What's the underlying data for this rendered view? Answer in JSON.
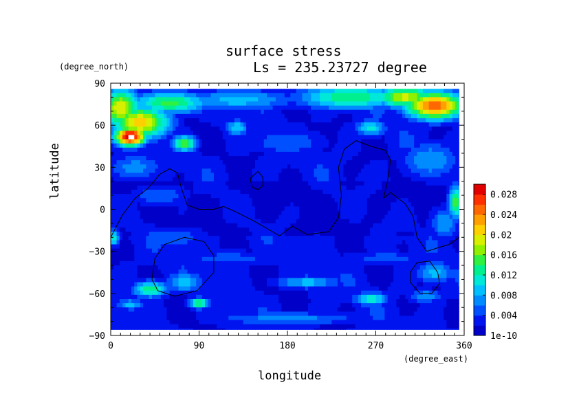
{
  "chart_data": {
    "type": "heatmap",
    "title": "surface stress",
    "subtitle": "Ls = 235.23727 degree",
    "xlabel": "longitude",
    "ylabel": "latitude",
    "x_unit": "(degree_east)",
    "y_unit": "(degree_north)",
    "xlim": [
      0,
      360
    ],
    "ylim": [
      -90,
      90
    ],
    "x_ticks": [
      "0",
      "90",
      "180",
      "270",
      "360"
    ],
    "x_tick_values": [
      0,
      90,
      180,
      270,
      360
    ],
    "y_ticks": [
      "90",
      "60",
      "30",
      "0",
      "−30",
      "−60",
      "−90"
    ],
    "y_tick_values": [
      90,
      60,
      30,
      0,
      -30,
      -60,
      -90
    ],
    "colorbar": {
      "min": 0,
      "max": 0.03,
      "tick_labels": [
        "0.028",
        "0.024",
        "0.02",
        "0.016",
        "0.012",
        "0.008",
        "0.004",
        "1e-10"
      ],
      "tick_values": [
        0.028,
        0.024,
        0.02,
        0.016,
        0.012,
        0.008,
        0.004,
        0
      ],
      "colors": [
        "#0000c8",
        "#0014f0",
        "#0050ff",
        "#008cff",
        "#00c0ff",
        "#00e8d8",
        "#00f090",
        "#30f040",
        "#90f000",
        "#d8f000",
        "#ffd000",
        "#ffa000",
        "#ff6800",
        "#ff3000",
        "#e00000"
      ]
    },
    "grid": false,
    "data_extent": {
      "lon": [
        0,
        355
      ],
      "lat": [
        -86,
        86
      ]
    },
    "field_hotspots": [
      {
        "lon": 20,
        "lat": 52,
        "value": 0.031,
        "rlon": 16,
        "rlat": 7
      },
      {
        "lon": 30,
        "lat": 62,
        "value": 0.021,
        "rlon": 30,
        "rlat": 12
      },
      {
        "lon": 10,
        "lat": 72,
        "value": 0.02,
        "rlon": 20,
        "rlat": 14
      },
      {
        "lon": 60,
        "lat": 76,
        "value": 0.015,
        "rlon": 40,
        "rlat": 8
      },
      {
        "lon": 130,
        "lat": 78,
        "value": 0.009,
        "rlon": 60,
        "rlat": 8
      },
      {
        "lon": 245,
        "lat": 80,
        "value": 0.014,
        "rlon": 55,
        "rlat": 9
      },
      {
        "lon": 330,
        "lat": 74,
        "value": 0.026,
        "rlon": 30,
        "rlat": 10
      },
      {
        "lon": 300,
        "lat": 80,
        "value": 0.019,
        "rlon": 30,
        "rlat": 8
      },
      {
        "lon": 75,
        "lat": 47,
        "value": 0.016,
        "rlon": 12,
        "rlat": 6
      },
      {
        "lon": 128,
        "lat": 58,
        "value": 0.01,
        "rlon": 12,
        "rlat": 6
      },
      {
        "lon": 265,
        "lat": 58,
        "value": 0.011,
        "rlon": 16,
        "rlat": 6
      },
      {
        "lon": 180,
        "lat": 48,
        "value": 0.006,
        "rlon": 40,
        "rlat": 10
      },
      {
        "lon": 25,
        "lat": 30,
        "value": 0.007,
        "rlon": 30,
        "rlat": 10
      },
      {
        "lon": 325,
        "lat": 35,
        "value": 0.008,
        "rlon": 30,
        "rlat": 14
      },
      {
        "lon": 352,
        "lat": 5,
        "value": 0.016,
        "rlon": 8,
        "rlat": 12
      },
      {
        "lon": 340,
        "lat": -10,
        "value": 0.008,
        "rlon": 15,
        "rlat": 12
      },
      {
        "lon": 3,
        "lat": -20,
        "value": 0.012,
        "rlon": 6,
        "rlat": 6
      },
      {
        "lon": 60,
        "lat": -20,
        "value": 0.006,
        "rlon": 40,
        "rlat": 8
      },
      {
        "lon": 40,
        "lat": -57,
        "value": 0.014,
        "rlon": 18,
        "rlat": 6
      },
      {
        "lon": 75,
        "lat": -52,
        "value": 0.009,
        "rlon": 20,
        "rlat": 8
      },
      {
        "lon": 90,
        "lat": -67,
        "value": 0.016,
        "rlon": 10,
        "rlat": 4
      },
      {
        "lon": 20,
        "lat": -68,
        "value": 0.009,
        "rlon": 15,
        "rlat": 4
      },
      {
        "lon": 200,
        "lat": -52,
        "value": 0.009,
        "rlon": 35,
        "rlat": 5
      },
      {
        "lon": 265,
        "lat": -64,
        "value": 0.012,
        "rlon": 18,
        "rlat": 5
      },
      {
        "lon": 330,
        "lat": -45,
        "value": 0.009,
        "rlon": 20,
        "rlat": 8
      },
      {
        "lon": 320,
        "lat": -62,
        "value": 0.008,
        "rlon": 18,
        "rlat": 5
      },
      {
        "lon": 120,
        "lat": -35,
        "value": 0.005,
        "rlon": 60,
        "rlat": 6
      },
      {
        "lon": 280,
        "lat": -35,
        "value": 0.005,
        "rlon": 50,
        "rlat": 6
      },
      {
        "lon": 180,
        "lat": -78,
        "value": 0.007,
        "rlon": 80,
        "rlat": 5
      },
      {
        "lon": 50,
        "lat": 10,
        "value": 0.006,
        "rlon": 30,
        "rlat": 8
      }
    ],
    "contours": [
      [
        [
          0,
          -20
        ],
        [
          12,
          -4
        ],
        [
          25,
          8
        ],
        [
          38,
          15
        ],
        [
          50,
          25
        ],
        [
          60,
          29
        ],
        [
          68,
          26
        ],
        [
          72,
          15
        ],
        [
          78,
          3
        ],
        [
          90,
          0
        ],
        [
          105,
          0
        ],
        [
          115,
          2
        ],
        [
          128,
          -2
        ],
        [
          145,
          -8
        ],
        [
          160,
          -14
        ],
        [
          172,
          -19
        ],
        [
          185,
          -12
        ],
        [
          200,
          -18
        ],
        [
          222,
          -16
        ],
        [
          232,
          -6
        ],
        [
          235,
          10
        ],
        [
          232,
          30
        ],
        [
          238,
          43
        ],
        [
          250,
          49
        ],
        [
          265,
          45
        ],
        [
          280,
          42
        ],
        [
          285,
          35
        ],
        [
          282,
          20
        ],
        [
          278,
          8
        ],
        [
          285,
          12
        ],
        [
          300,
          4
        ],
        [
          308,
          -5
        ],
        [
          312,
          -20
        ],
        [
          322,
          -30
        ],
        [
          335,
          -27
        ],
        [
          345,
          -25
        ],
        [
          355,
          -20
        ]
      ],
      [
        [
          142,
          22
        ],
        [
          150,
          27
        ],
        [
          155,
          23
        ],
        [
          155,
          17
        ],
        [
          150,
          14
        ],
        [
          144,
          16
        ],
        [
          142,
          22
        ]
      ],
      [
        [
          42,
          -50
        ],
        [
          48,
          -58
        ],
        [
          65,
          -62
        ],
        [
          88,
          -58
        ],
        [
          105,
          -45
        ],
        [
          105,
          -33
        ],
        [
          95,
          -23
        ],
        [
          75,
          -20
        ],
        [
          55,
          -25
        ],
        [
          45,
          -35
        ],
        [
          42,
          -50
        ]
      ],
      [
        [
          305,
          -45
        ],
        [
          312,
          -38
        ],
        [
          325,
          -37
        ],
        [
          333,
          -45
        ],
        [
          335,
          -53
        ],
        [
          327,
          -60
        ],
        [
          315,
          -60
        ],
        [
          305,
          -52
        ],
        [
          305,
          -45
        ]
      ]
    ]
  }
}
